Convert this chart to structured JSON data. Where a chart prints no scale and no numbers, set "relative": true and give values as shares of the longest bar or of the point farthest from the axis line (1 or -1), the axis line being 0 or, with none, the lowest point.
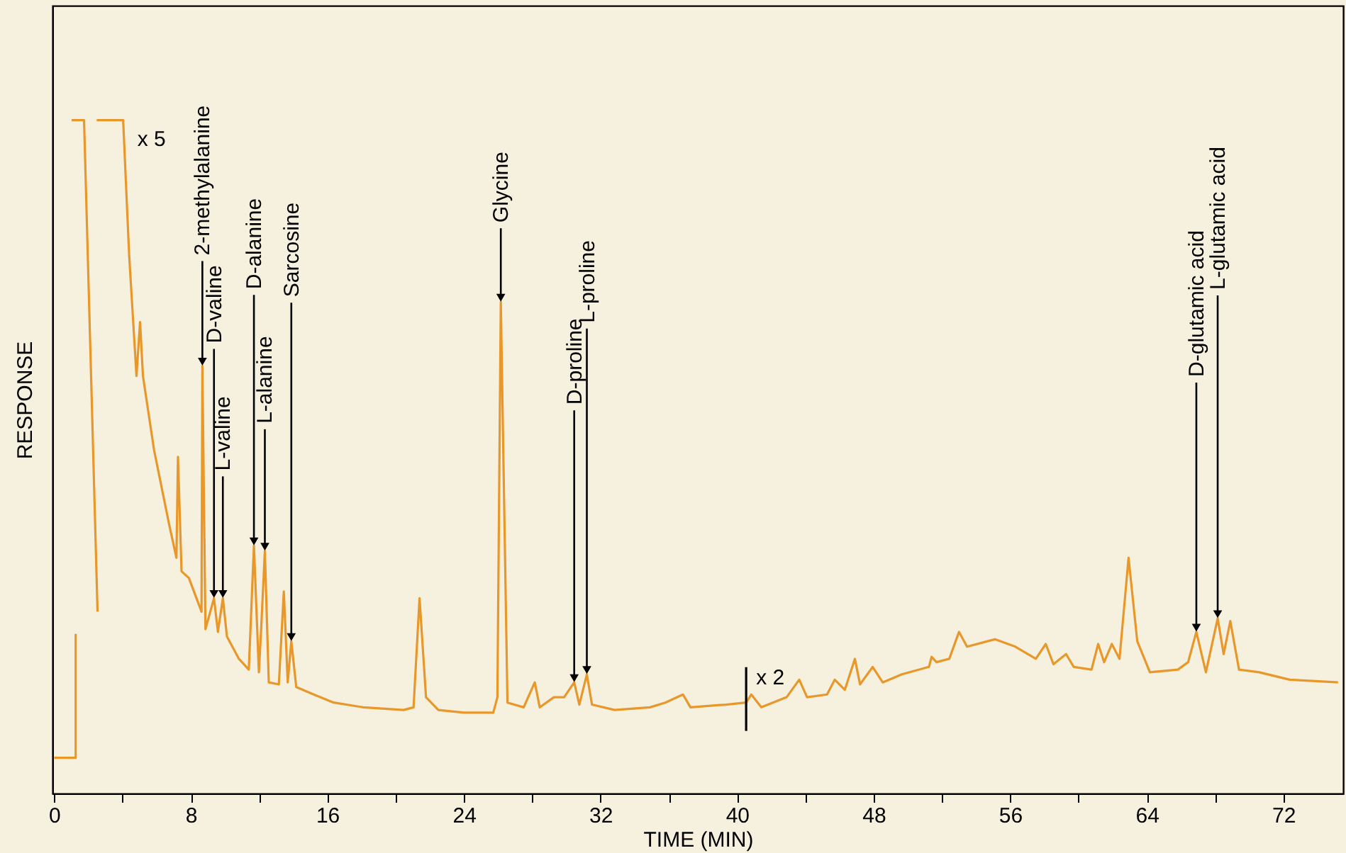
{
  "chart_data": {
    "type": "line",
    "relative": true,
    "xlabel": "TIME (MIN)",
    "ylabel": "RESPONSE",
    "xlim": [
      -0.1,
      75.5
    ],
    "xticks": [
      0,
      {
        "value": 4,
        "label": null
      },
      8,
      {
        "value": 12,
        "label": null
      },
      16,
      {
        "value": 20,
        "label": null
      },
      24,
      {
        "value": 28,
        "label": null
      },
      32,
      {
        "value": 36,
        "label": null
      },
      40,
      {
        "value": 44,
        "label": null
      },
      48,
      {
        "value": 52,
        "label": null
      },
      56,
      {
        "value": 60,
        "label": null
      },
      64,
      {
        "value": 68,
        "label": null
      },
      72
    ],
    "x": [
      0,
      1.26,
      1.26,
      null,
      1.02,
      1.75,
      2.54,
      null,
      2.49,
      4.04,
      4.39,
      4.82,
      5.03,
      5.2,
      5.85,
      6.73,
      7.16,
      7.25,
      7.46,
      7.89,
      8.63,
      8.68,
      8.86,
      9.36,
      9.59,
      9.88,
      10.12,
      10.82,
      11.4,
      11.7,
      11.99,
      12.13,
      12.34,
      12.57,
      13.16,
      13.45,
      13.68,
      13.89,
      14.18,
      15.2,
      16.37,
      18.1,
      20.47,
      21.05,
      21.4,
      21.78,
      22.5,
      24,
      25.72,
      25.96,
      26.16,
      26.55,
      27.5,
      28.15,
      28.44,
      29.27,
      29.87,
      30.46,
      30.76,
      31.2,
      31.5,
      32.83,
      34.9,
      35.8,
      36.83,
      37.27,
      39.35,
      40.53,
      40.83,
      41.42,
      42.9,
      43.64,
      44.1,
      45.27,
      45.72,
      46.31,
      46.9,
      47.2,
      47.94,
      48.53,
      49.66,
      51.24,
      51.39,
      51.68,
      52.43,
      53.0,
      53.47,
      55.1,
      56.3,
      57.5,
      58.08,
      58.53,
      59.27,
      59.72,
      60.76,
      61.15,
      61.5,
      61.95,
      62.4,
      62.93,
      63.44,
      64.18,
      65.82,
      66.42,
      66.9,
      67.46,
      68.15,
      68.5,
      68.89,
      69.4,
      70.58,
      72.37,
      75.2
    ],
    "series": [
      {
        "color": "#e8972a",
        "values": [
          0.053,
          0.053,
          0.237,
          null,
          1,
          1,
          0.27,
          null,
          1,
          1,
          0.8,
          0.62,
          0.7,
          0.62,
          0.51,
          0.4,
          0.35,
          0.5,
          0.33,
          0.32,
          0.27,
          0.635,
          0.244,
          0.29,
          0.24,
          0.29,
          0.233,
          0.2,
          0.184,
          0.368,
          0.18,
          0.248,
          0.36,
          0.165,
          0.162,
          0.3,
          0.165,
          0.226,
          0.158,
          0.147,
          0.135,
          0.128,
          0.124,
          0.128,
          0.29,
          0.143,
          0.124,
          0.12,
          0.12,
          0.143,
          0.73,
          0.135,
          0.128,
          0.165,
          0.128,
          0.143,
          0.143,
          0.165,
          0.132,
          0.177,
          0.132,
          0.124,
          0.128,
          0.135,
          0.147,
          0.128,
          0.132,
          0.135,
          0.147,
          0.128,
          0.143,
          0.169,
          0.143,
          0.147,
          0.169,
          0.154,
          0.2,
          0.162,
          0.188,
          0.165,
          0.177,
          0.188,
          0.203,
          0.195,
          0.2,
          0.24,
          0.218,
          0.229,
          0.218,
          0.2,
          0.222,
          0.192,
          0.207,
          0.188,
          0.184,
          0.222,
          0.195,
          0.222,
          0.2,
          0.35,
          0.226,
          0.18,
          0.184,
          0.195,
          0.24,
          0.18,
          0.26,
          0.207,
          0.256,
          0.184,
          0.18,
          0.169,
          0.165
        ]
      }
    ],
    "annotations": [
      {
        "text": "2-methylalanine",
        "x": 8.68,
        "y": 0.635
      },
      {
        "text": "D-valine",
        "x": 9.36,
        "y": 0.29
      },
      {
        "text": "L-valine",
        "x": 9.88,
        "y": 0.29
      },
      {
        "text": "D-alanine",
        "x": 11.7,
        "y": 0.368
      },
      {
        "text": "L-alanine",
        "x": 12.34,
        "y": 0.36
      },
      {
        "text": "Sarcosine",
        "x": 13.89,
        "y": 0.226
      },
      {
        "text": "Glycine",
        "x": 26.16,
        "y": 0.73
      },
      {
        "text": "D-proline",
        "x": 30.46,
        "y": 0.165
      },
      {
        "text": "L-proline",
        "x": 31.2,
        "y": 0.177
      },
      {
        "text": "D-glutamic acid",
        "x": 66.9,
        "y": 0.24
      },
      {
        "text": "L-glutamic acid",
        "x": 68.15,
        "y": 0.26
      },
      {
        "text": "x 5",
        "x": 4.04,
        "y": 1
      },
      {
        "text": "x 2",
        "x": 40.53,
        "y": 0.135
      }
    ]
  }
}
